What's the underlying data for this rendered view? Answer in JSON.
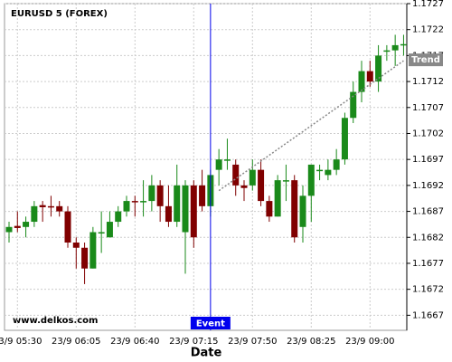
{
  "chart_data": {
    "type": "candlestick",
    "title": "EURUSD 5 (FOREX)",
    "watermark": "www.delkos.com",
    "x_label": "Date",
    "categories": [
      null,
      "23/9 05:30",
      null,
      null,
      null,
      null,
      null,
      null,
      "23/9 06:05",
      null,
      null,
      null,
      null,
      null,
      null,
      "23/9 06:40",
      null,
      null,
      null,
      null,
      null,
      null,
      "23/9 07:15",
      null,
      null,
      null,
      null,
      null,
      null,
      "23/9 07:50",
      null,
      null,
      null,
      null,
      null,
      null,
      "23/9 08:25",
      null,
      null,
      null,
      null,
      null,
      null,
      "23/9 09:00",
      null,
      null,
      null,
      null
    ],
    "open": [
      1.1683,
      1.16842,
      1.1684,
      1.1685,
      1.16882,
      1.1688,
      1.1688,
      1.1687,
      1.1681,
      1.168,
      1.1676,
      1.1683,
      1.1682,
      1.1685,
      1.1687,
      1.1689,
      1.1689,
      1.1689,
      1.1692,
      1.1688,
      1.1685,
      1.1683,
      1.1692,
      1.1692,
      1.1688,
      1.1695,
      1.1697,
      1.1696,
      1.1692,
      1.1692,
      1.1695,
      1.1689,
      1.1686,
      1.1693,
      1.1693,
      1.1684,
      1.169,
      1.1695,
      1.1694,
      1.1695,
      1.1697,
      1.1705,
      1.171,
      1.1714,
      1.1712,
      1.1718,
      1.1718,
      1.1719
    ],
    "high": [
      1.1685,
      1.1687,
      1.1686,
      1.1689,
      1.1689,
      1.169,
      1.1689,
      1.1688,
      1.1682,
      1.1681,
      1.1684,
      1.1687,
      1.1687,
      1.1688,
      1.169,
      1.169,
      1.1693,
      1.1694,
      1.1693,
      1.1692,
      1.1696,
      1.1693,
      1.1693,
      1.1695,
      1.1695,
      1.1699,
      1.1701,
      1.1697,
      1.1693,
      1.1697,
      1.1697,
      1.169,
      1.1694,
      1.1696,
      1.1694,
      1.1692,
      1.1696,
      1.1696,
      1.1697,
      1.1699,
      1.1706,
      1.1712,
      1.1716,
      1.1716,
      1.1719,
      1.1719,
      1.1721,
      1.1721
    ],
    "low": [
      1.1681,
      1.1683,
      1.1682,
      1.1684,
      1.1685,
      1.1686,
      1.1686,
      1.168,
      1.1676,
      1.1673,
      1.1676,
      1.1679,
      1.1682,
      1.1684,
      1.1686,
      1.1686,
      1.1686,
      1.1687,
      1.1685,
      1.1684,
      1.1684,
      1.1675,
      1.168,
      1.1687,
      1.1686,
      1.1692,
      1.1695,
      1.169,
      1.1689,
      1.1691,
      1.1688,
      1.1685,
      1.1686,
      1.1689,
      1.1681,
      1.1681,
      1.1685,
      1.1693,
      1.1693,
      1.1694,
      1.1696,
      1.1704,
      1.1708,
      1.1711,
      1.171,
      1.1716,
      1.1715,
      1.1717
    ],
    "close": [
      1.1684,
      1.16838,
      1.1685,
      1.1688,
      1.16878,
      1.16878,
      1.1687,
      1.1681,
      1.168,
      1.1676,
      1.1683,
      1.1683,
      1.1685,
      1.1687,
      1.1689,
      1.16888,
      1.1689,
      1.1692,
      1.1688,
      1.1685,
      1.1692,
      1.1692,
      1.1682,
      1.1688,
      1.1694,
      1.1697,
      1.1697,
      1.1692,
      1.16915,
      1.1695,
      1.1689,
      1.1686,
      1.1693,
      1.1693,
      1.1682,
      1.169,
      1.1696,
      1.1695,
      1.1695,
      1.1697,
      1.1705,
      1.171,
      1.1714,
      1.1712,
      1.1717,
      1.1718,
      1.1719,
      1.17192
    ],
    "up_color": "#1a8a1a",
    "down_color": "#800000",
    "ylim": [
      1.16641,
      1.1727
    ],
    "yticks": [
      1.1667,
      1.1672,
      1.1677,
      1.1682,
      1.1687,
      1.1692,
      1.1697,
      1.1702,
      1.1707,
      1.1712,
      1.1717,
      1.1722,
      1.1727
    ],
    "grid": true,
    "event": {
      "label": "Event",
      "index": 24,
      "color": "#0000ee"
    },
    "trend": {
      "label": "Trend",
      "from": {
        "index": 25,
        "value": 1.1691
      },
      "to": {
        "index": 47,
        "value": 1.1716
      },
      "color": "#888888"
    }
  }
}
